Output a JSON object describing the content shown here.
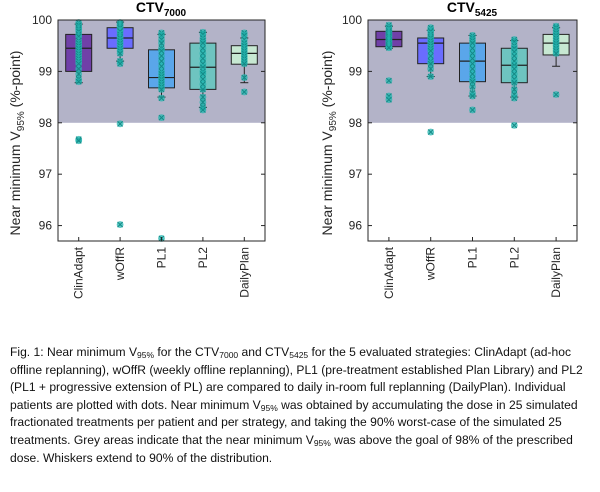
{
  "figure": {
    "ylabel_pre": "Near minimum V",
    "ylabel_sub": "95%",
    "ylabel_post": " (%-point)"
  },
  "chart_data": [
    {
      "type": "box",
      "title": "CTV",
      "title_sub": "7000",
      "ylim": [
        95.7,
        100
      ],
      "yticks": [
        96,
        97,
        98,
        99,
        100
      ],
      "goal": 98,
      "shaded_region": [
        98,
        100
      ],
      "categories": [
        "ClinAdapt",
        "wOffR",
        "PL1",
        "PL2",
        "DailyPlan"
      ],
      "colors": [
        "#7040a8",
        "#6a6cff",
        "#5aa6ea",
        "#6ec4c0",
        "#c7e8d2"
      ],
      "boxes": [
        {
          "whisker_low": 98.78,
          "q1": 99.0,
          "median": 99.45,
          "q3": 99.72,
          "whisker_high": 99.92
        },
        {
          "whisker_low": 99.2,
          "q1": 99.45,
          "median": 99.65,
          "q3": 99.85,
          "whisker_high": 99.96
        },
        {
          "whisker_low": 98.5,
          "q1": 98.68,
          "median": 98.88,
          "q3": 99.42,
          "whisker_high": 99.72
        },
        {
          "whisker_low": 98.3,
          "q1": 98.65,
          "median": 99.08,
          "q3": 99.55,
          "whisker_high": 99.76
        },
        {
          "whisker_low": 98.78,
          "q1": 99.14,
          "median": 99.35,
          "q3": 99.5,
          "whisker_high": 99.65
        }
      ],
      "points": [
        [
          99.95,
          99.9,
          99.85,
          99.82,
          99.78,
          99.72,
          99.68,
          99.6,
          99.55,
          99.5,
          99.45,
          99.4,
          99.35,
          99.3,
          99.25,
          99.2,
          99.15,
          99.05,
          98.95,
          98.85,
          98.8,
          97.68,
          97.65
        ],
        [
          99.95,
          99.92,
          99.9,
          99.88,
          99.85,
          99.8,
          99.78,
          99.72,
          99.68,
          99.65,
          99.6,
          99.55,
          99.5,
          99.45,
          99.4,
          99.35,
          99.2,
          99.15,
          97.98,
          96.02
        ],
        [
          99.75,
          99.7,
          99.62,
          99.55,
          99.45,
          99.4,
          99.3,
          99.2,
          99.1,
          99.0,
          98.95,
          98.9,
          98.85,
          98.8,
          98.75,
          98.7,
          98.65,
          98.48,
          98.1,
          95.75
        ],
        [
          99.76,
          99.72,
          99.65,
          99.6,
          99.55,
          99.45,
          99.35,
          99.25,
          99.15,
          99.08,
          99.0,
          98.95,
          98.85,
          98.75,
          98.65,
          98.5,
          98.4,
          98.3,
          98.25
        ],
        [
          99.75,
          99.7,
          99.62,
          99.55,
          99.5,
          99.45,
          99.4,
          99.35,
          99.3,
          99.25,
          99.2,
          99.15,
          98.88,
          98.6
        ]
      ]
    },
    {
      "type": "box",
      "title": "CTV",
      "title_sub": "5425",
      "ylim": [
        95.7,
        100
      ],
      "yticks": [
        96,
        97,
        98,
        99,
        100
      ],
      "goal": 98,
      "shaded_region": [
        98,
        100
      ],
      "categories": [
        "ClinAdapt",
        "wOffR",
        "PL1",
        "PL2",
        "DailyPlan"
      ],
      "colors": [
        "#7040a8",
        "#6a6cff",
        "#5aa6ea",
        "#6ec4c0",
        "#c7e8d2"
      ],
      "boxes": [
        {
          "whisker_low": 99.45,
          "q1": 99.48,
          "median": 99.62,
          "q3": 99.78,
          "whisker_high": 99.88
        },
        {
          "whisker_low": 98.9,
          "q1": 99.15,
          "median": 99.55,
          "q3": 99.65,
          "whisker_high": 99.8
        },
        {
          "whisker_low": 98.52,
          "q1": 98.8,
          "median": 99.2,
          "q3": 99.55,
          "whisker_high": 99.7
        },
        {
          "whisker_low": 98.5,
          "q1": 98.78,
          "median": 99.12,
          "q3": 99.45,
          "whisker_high": 99.6
        },
        {
          "whisker_low": 99.1,
          "q1": 99.32,
          "median": 99.55,
          "q3": 99.72,
          "whisker_high": 99.85
        }
      ],
      "points": [
        [
          99.9,
          99.85,
          99.8,
          99.78,
          99.75,
          99.72,
          99.7,
          99.68,
          99.65,
          99.62,
          99.6,
          99.58,
          99.55,
          99.52,
          99.5,
          99.48,
          99.46,
          98.82,
          98.52,
          98.45
        ],
        [
          99.85,
          99.8,
          99.78,
          99.72,
          99.68,
          99.65,
          99.6,
          99.55,
          99.5,
          99.45,
          99.4,
          99.3,
          99.2,
          99.15,
          99.05,
          98.9,
          97.82
        ],
        [
          99.7,
          99.65,
          99.6,
          99.55,
          99.45,
          99.35,
          99.25,
          99.15,
          99.05,
          98.95,
          98.85,
          98.8,
          98.7,
          98.58,
          98.52,
          98.25
        ],
        [
          99.62,
          99.58,
          99.5,
          99.45,
          99.38,
          99.3,
          99.2,
          99.12,
          99.05,
          98.95,
          98.85,
          98.78,
          98.65,
          98.55,
          98.48,
          97.95
        ],
        [
          99.88,
          99.85,
          99.8,
          99.75,
          99.7,
          99.65,
          99.6,
          99.55,
          99.5,
          99.45,
          99.4,
          99.35,
          98.55
        ]
      ]
    }
  ],
  "caption": {
    "p1": "Fig. 1: Near minimum V",
    "s1": "95%",
    "p2": " for the CTV",
    "s2": "7000",
    "p3": " and CTV",
    "s3": "5425",
    "p4": " for the 5 evaluated strategies: ClinAdapt (ad-hoc offline replanning), wOffR (weekly offline replanning), PL1 (pre-treatment established Plan Library) and PL2 (PL1 + progressive extension of PL) are compared to daily in-room full replanning (DailyPlan). Individual patients are plotted with dots. Near minimum V",
    "s4": "95%",
    "p5": " was obtained by accumulating the dose in 25 simulated fractionated treatments per patient and per strategy, and taking the 90% worst-case of the simulated 25 treatments. Grey areas indicate that the near minimum V",
    "s5": "95%",
    "p6": " was above the goal of 98% of the prescribed dose. Whiskers extend to 90% of the distribution."
  }
}
